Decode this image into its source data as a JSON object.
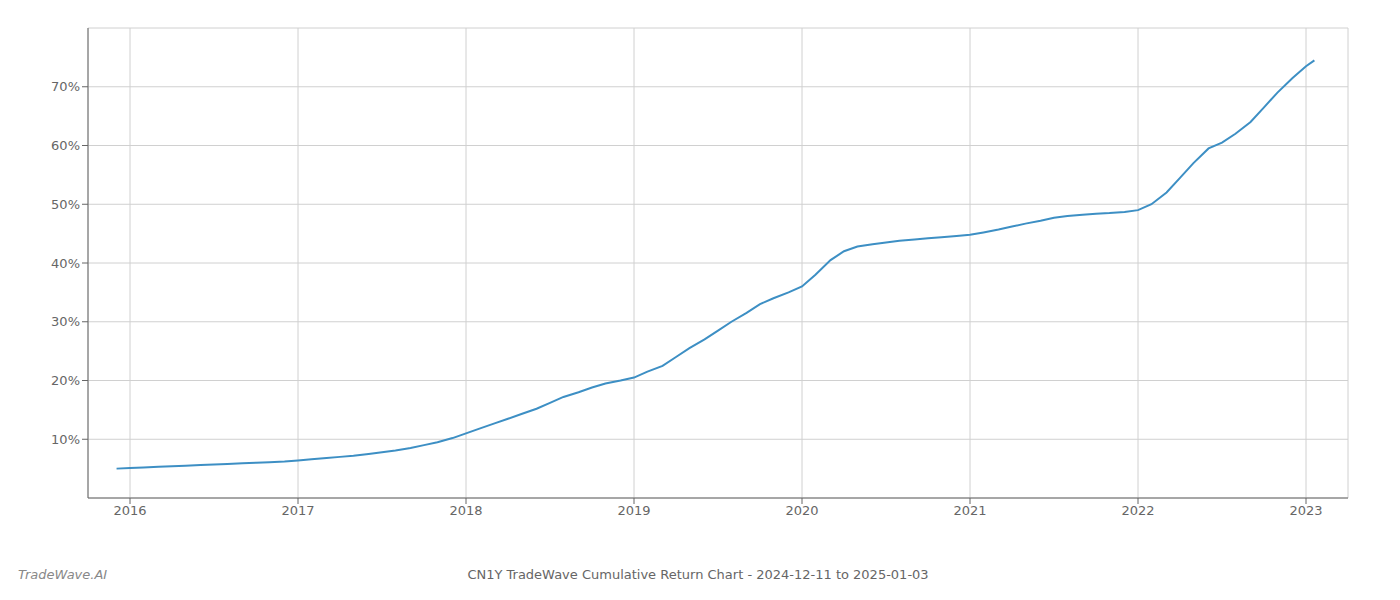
{
  "chart_data": {
    "type": "line",
    "title": "CN1Y TradeWave Cumulative Return Chart - 2024-12-11 to 2025-01-03",
    "annotations": [
      "TradeWave.AI"
    ],
    "color": "#3d8fc4",
    "grid": true,
    "x": [
      2015.92,
      2016.0,
      2016.08,
      2016.17,
      2016.25,
      2016.33,
      2016.42,
      2016.5,
      2016.58,
      2016.67,
      2016.75,
      2016.83,
      2016.92,
      2017.0,
      2017.08,
      2017.17,
      2017.25,
      2017.33,
      2017.42,
      2017.5,
      2017.58,
      2017.67,
      2017.75,
      2017.83,
      2017.92,
      2018.0,
      2018.08,
      2018.17,
      2018.25,
      2018.33,
      2018.42,
      2018.5,
      2018.58,
      2018.67,
      2018.75,
      2018.83,
      2018.92,
      2019.0,
      2019.08,
      2019.17,
      2019.25,
      2019.33,
      2019.42,
      2019.5,
      2019.58,
      2019.67,
      2019.75,
      2019.83,
      2019.92,
      2020.0,
      2020.08,
      2020.17,
      2020.25,
      2020.33,
      2020.42,
      2020.5,
      2020.58,
      2020.67,
      2020.75,
      2020.83,
      2020.92,
      2021.0,
      2021.08,
      2021.17,
      2021.25,
      2021.33,
      2021.42,
      2021.5,
      2021.58,
      2021.67,
      2021.75,
      2021.83,
      2021.92,
      2022.0,
      2022.08,
      2022.17,
      2022.25,
      2022.33,
      2022.42,
      2022.5,
      2022.58,
      2022.67,
      2022.75,
      2022.83,
      2022.92,
      2023.0,
      2023.05
    ],
    "values": [
      5.0,
      5.1,
      5.2,
      5.3,
      5.4,
      5.5,
      5.6,
      5.7,
      5.8,
      5.9,
      6.0,
      6.1,
      6.2,
      6.4,
      6.6,
      6.8,
      7.0,
      7.2,
      7.5,
      7.8,
      8.1,
      8.5,
      9.0,
      9.5,
      10.2,
      11.0,
      11.8,
      12.7,
      13.5,
      14.3,
      15.2,
      16.2,
      17.2,
      18.0,
      18.8,
      19.5,
      20.0,
      20.5,
      21.5,
      22.5,
      24.0,
      25.5,
      27.0,
      28.5,
      30.0,
      31.5,
      33.0,
      34.0,
      35.0,
      36.0,
      38.0,
      40.5,
      42.0,
      42.8,
      43.2,
      43.5,
      43.8,
      44.0,
      44.2,
      44.4,
      44.6,
      44.8,
      45.2,
      45.7,
      46.2,
      46.7,
      47.2,
      47.7,
      48.0,
      48.2,
      48.4,
      48.5,
      48.7,
      49.0,
      50.0,
      52.0,
      54.5,
      57.0,
      59.5,
      60.5,
      62.0,
      64.0,
      66.5,
      69.0,
      71.5,
      73.5,
      74.5
    ],
    "xlim": [
      2015.75,
      2023.25
    ],
    "xticks": [
      2016,
      2017,
      2018,
      2019,
      2020,
      2021,
      2022,
      2023
    ],
    "ylim": [
      0,
      80
    ],
    "yticks": [
      {
        "value": 10,
        "label": "10%"
      },
      {
        "value": 20,
        "label": "20%"
      },
      {
        "value": 30,
        "label": "30%"
      },
      {
        "value": 40,
        "label": "40%"
      },
      {
        "value": 50,
        "label": "50%"
      },
      {
        "value": 60,
        "label": "60%"
      },
      {
        "value": 70,
        "label": "70%"
      }
    ]
  }
}
